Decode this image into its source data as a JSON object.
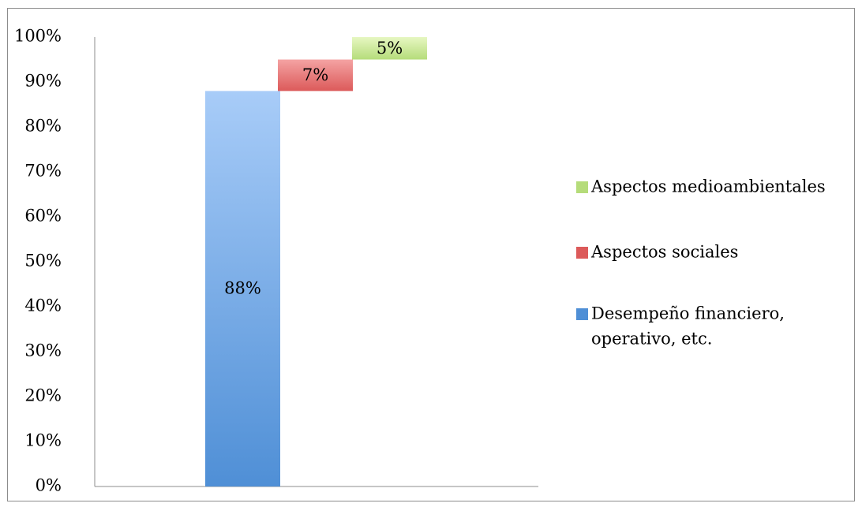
{
  "chart_data": {
    "type": "bar",
    "subtype": "waterfall",
    "title": "",
    "xlabel": "",
    "ylabel": "",
    "ylim": [
      0,
      100
    ],
    "y_ticks": [
      "0%",
      "10%",
      "20%",
      "30%",
      "40%",
      "50%",
      "60%",
      "70%",
      "80%",
      "90%",
      "100%"
    ],
    "grid": false,
    "legend_position": "right",
    "series": [
      {
        "name": "Desempeño financiero, operativo, etc.",
        "value": 88,
        "label": "88%",
        "color_top": "#a8ccf8",
        "color_bottom": "#4f8fd6"
      },
      {
        "name": "Aspectos sociales",
        "value": 7,
        "label": "7%",
        "color_top": "#f4a3a3",
        "color_bottom": "#dc5a5a"
      },
      {
        "name": "Aspectos medioambientales",
        "value": 5,
        "label": "5%",
        "color_top": "#e7f7c2",
        "color_bottom": "#b5dc7a"
      }
    ],
    "legend": [
      {
        "label": "Aspectos medioambientales",
        "color": "#b5dc7a"
      },
      {
        "label": "Aspectos sociales",
        "color": "#dc5a5a"
      },
      {
        "label_lines": [
          "Desempeño financiero,",
          "operativo, etc."
        ],
        "color": "#4f8fd6"
      }
    ]
  }
}
